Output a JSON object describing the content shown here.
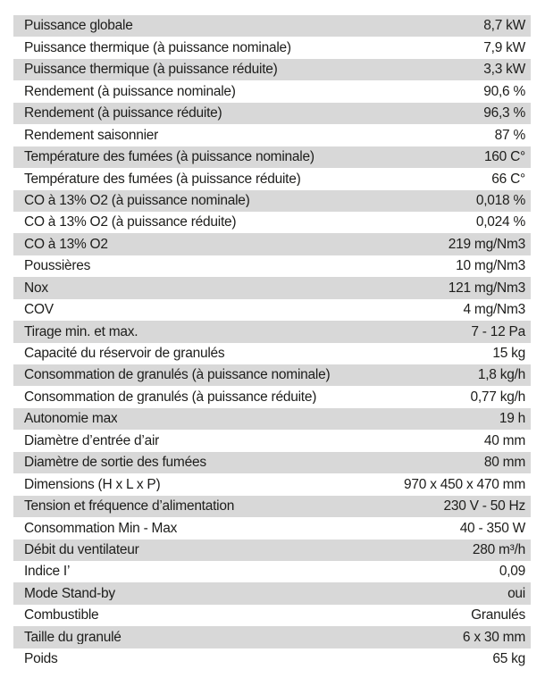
{
  "colors": {
    "row_alt": "#d8d8d8",
    "text": "#1d1d1b",
    "background": "#ffffff"
  },
  "table": {
    "rows": [
      {
        "label": "Puissance globale",
        "value": "8,7 kW"
      },
      {
        "label": "Puissance thermique (à puissance nominale)",
        "value": "7,9 kW"
      },
      {
        "label": "Puissance thermique (à puissance réduite)",
        "value": "3,3 kW"
      },
      {
        "label": "Rendement (à puissance nominale)",
        "value": "90,6 %"
      },
      {
        "label": "Rendement (à puissance réduite)",
        "value": "96,3 %"
      },
      {
        "label": "Rendement saisonnier",
        "value": "87 %"
      },
      {
        "label": "Température des fumées (à puissance nominale)",
        "value": "160 C°"
      },
      {
        "label": "Température des fumées (à puissance réduite)",
        "value": "66 C°"
      },
      {
        "label": "CO à 13% O2 (à puissance nominale)",
        "value": "0,018 %"
      },
      {
        "label": "CO à 13% O2 (à puissance réduite)",
        "value": "0,024 %"
      },
      {
        "label": "CO à 13% O2",
        "value": "219 mg/Nm3"
      },
      {
        "label": "Poussières",
        "value": "10 mg/Nm3"
      },
      {
        "label": "Nox",
        "value": "121 mg/Nm3"
      },
      {
        "label": "COV",
        "value": "4 mg/Nm3"
      },
      {
        "label": "Tirage min. et max.",
        "value": "7 - 12 Pa"
      },
      {
        "label": "Capacité du réservoir de granulés",
        "value": "15 kg"
      },
      {
        "label": "Consommation de granulés (à puissance nominale)",
        "value": "1,8 kg/h"
      },
      {
        "label": "Consommation de granulés (à puissance réduite)",
        "value": "0,77 kg/h"
      },
      {
        "label": "Autonomie max",
        "value": "19 h"
      },
      {
        "label": "Diamètre d’entrée d’air",
        "value": "40 mm"
      },
      {
        "label": "Diamètre de sortie des fumées",
        "value": "80 mm"
      },
      {
        "label": "Dimensions (H x L x P)",
        "value": "970 x 450 x 470 mm"
      },
      {
        "label": "Tension et fréquence d’alimentation",
        "value": "230 V - 50 Hz"
      },
      {
        "label": "Consommation Min - Max",
        "value": "40 - 350 W"
      },
      {
        "label": "Débit du ventilateur",
        "value": "280 m³/h"
      },
      {
        "label": "Indice I’",
        "value": "0,09"
      },
      {
        "label": "Mode Stand-by",
        "value": "oui"
      },
      {
        "label": "Combustible",
        "value": "Granulés"
      },
      {
        "label": "Taille du granulé",
        "value": "6 x 30 mm"
      },
      {
        "label": "Poids",
        "value": "65 kg"
      }
    ]
  }
}
